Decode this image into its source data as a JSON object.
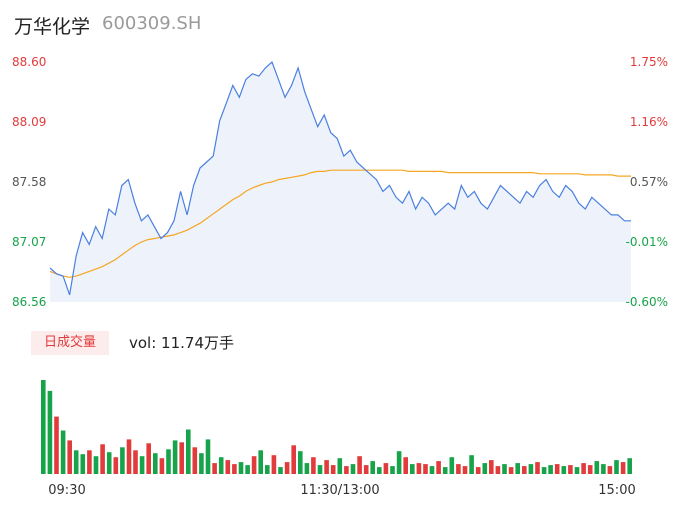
{
  "header": {
    "name": "万华化学",
    "code": "600309.SH"
  },
  "volume_label": "日成交量",
  "volume_text": "vol: 11.74万手",
  "colors": {
    "up": "#e23b3b",
    "down": "#17a34a",
    "price_line": "#4a7fe0",
    "avg_line": "#f5a623",
    "area": "#eef3fb"
  },
  "chart_data": [
    {
      "type": "line",
      "ylim": [
        86.56,
        88.6
      ],
      "left_ticks": [
        "88.60",
        "88.09",
        "87.58",
        "87.07",
        "86.56"
      ],
      "right_ticks": [
        "1.75%",
        "1.16%",
        "0.57%",
        "-0.01%",
        "-0.60%"
      ],
      "x_ticks": [
        "09:30",
        "11:30/13:00",
        "15:00"
      ],
      "price": [
        86.85,
        86.8,
        86.78,
        86.62,
        86.95,
        87.15,
        87.05,
        87.2,
        87.1,
        87.35,
        87.3,
        87.55,
        87.6,
        87.4,
        87.25,
        87.3,
        87.2,
        87.1,
        87.15,
        87.25,
        87.5,
        87.3,
        87.55,
        87.7,
        87.75,
        87.8,
        88.1,
        88.25,
        88.4,
        88.3,
        88.45,
        88.5,
        88.48,
        88.55,
        88.6,
        88.45,
        88.3,
        88.4,
        88.55,
        88.35,
        88.2,
        88.05,
        88.15,
        88.0,
        87.95,
        87.8,
        87.85,
        87.75,
        87.7,
        87.65,
        87.6,
        87.5,
        87.55,
        87.45,
        87.4,
        87.5,
        87.35,
        87.45,
        87.4,
        87.3,
        87.35,
        87.4,
        87.35,
        87.55,
        87.45,
        87.5,
        87.4,
        87.35,
        87.45,
        87.55,
        87.5,
        87.45,
        87.4,
        87.5,
        87.45,
        87.55,
        87.6,
        87.5,
        87.45,
        87.55,
        87.5,
        87.4,
        87.35,
        87.45,
        87.4,
        87.35,
        87.3,
        87.3,
        87.25,
        87.25
      ],
      "avg": [
        86.82,
        86.8,
        86.78,
        86.77,
        86.78,
        86.8,
        86.82,
        86.84,
        86.86,
        86.89,
        86.92,
        86.96,
        87.0,
        87.04,
        87.07,
        87.09,
        87.1,
        87.11,
        87.12,
        87.13,
        87.15,
        87.17,
        87.2,
        87.23,
        87.27,
        87.31,
        87.35,
        87.39,
        87.43,
        87.46,
        87.5,
        87.53,
        87.55,
        87.57,
        87.58,
        87.6,
        87.61,
        87.62,
        87.63,
        87.64,
        87.66,
        87.67,
        87.67,
        87.68,
        87.68,
        87.68,
        87.68,
        87.68,
        87.68,
        87.68,
        87.68,
        87.68,
        87.68,
        87.68,
        87.68,
        87.67,
        87.67,
        87.67,
        87.67,
        87.67,
        87.67,
        87.66,
        87.66,
        87.66,
        87.66,
        87.66,
        87.66,
        87.66,
        87.66,
        87.66,
        87.66,
        87.66,
        87.66,
        87.66,
        87.66,
        87.65,
        87.65,
        87.65,
        87.65,
        87.65,
        87.65,
        87.65,
        87.64,
        87.64,
        87.64,
        87.64,
        87.64,
        87.63,
        87.63,
        87.63
      ]
    },
    {
      "type": "bar",
      "name": "日成交量",
      "values": [
        95,
        84,
        58,
        44,
        34,
        24,
        20,
        24,
        18,
        30,
        22,
        17,
        27,
        35,
        24,
        18,
        31,
        21,
        16,
        25,
        34,
        32,
        45,
        27,
        21,
        35,
        11,
        17,
        14,
        10,
        12,
        9,
        18,
        24,
        9,
        19,
        7,
        12,
        29,
        23,
        11,
        17,
        9,
        14,
        9,
        16,
        8,
        10,
        18,
        9,
        13,
        7,
        11,
        8,
        23,
        17,
        10,
        11,
        10,
        8,
        13,
        7,
        17,
        10,
        8,
        19,
        7,
        11,
        14,
        8,
        10,
        7,
        11,
        8,
        10,
        12,
        7,
        9,
        10,
        8,
        9,
        7,
        11,
        9,
        13,
        10,
        8,
        14,
        12,
        16
      ],
      "up": [
        0,
        0,
        1,
        0,
        1,
        0,
        0,
        1,
        0,
        1,
        0,
        1,
        0,
        1,
        1,
        0,
        1,
        0,
        1,
        0,
        0,
        1,
        0,
        1,
        0,
        0,
        1,
        0,
        1,
        1,
        0,
        0,
        1,
        0,
        0,
        1,
        0,
        1,
        1,
        0,
        0,
        1,
        0,
        1,
        1,
        0,
        1,
        0,
        1,
        1,
        0,
        0,
        1,
        0,
        0,
        1,
        0,
        1,
        1,
        0,
        1,
        0,
        0,
        1,
        1,
        0,
        1,
        0,
        1,
        1,
        0,
        1,
        0,
        1,
        0,
        1,
        0,
        0,
        1,
        0,
        1,
        0,
        1,
        1,
        0,
        0,
        1,
        0,
        1,
        0
      ]
    }
  ]
}
